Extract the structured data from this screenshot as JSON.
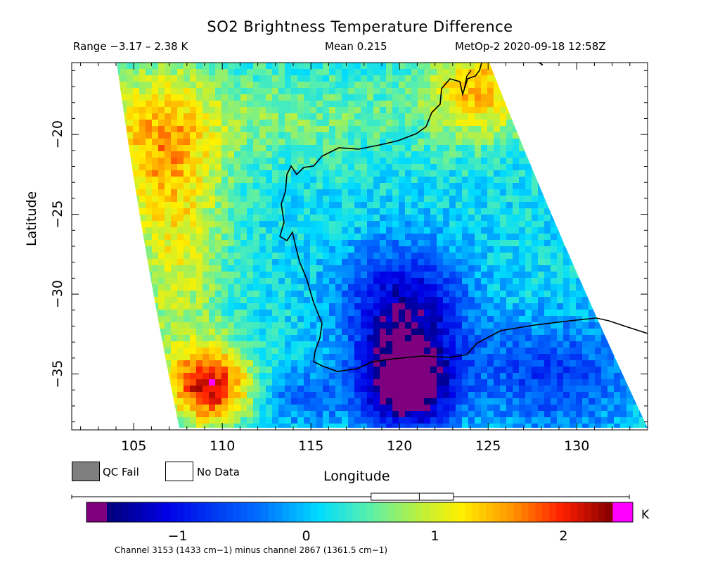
{
  "header": {
    "title": "SO2 Brightness Temperature Difference",
    "range": "Range −3.17 – 2.38 K",
    "mean": "Mean 0.215",
    "satellite_time": "MetOp-2 2020-09-18 12:58Z"
  },
  "axes": {
    "xlabel": "Longitude",
    "ylabel": "Latitude",
    "xticks": [
      "105",
      "110",
      "115",
      "120",
      "125",
      "130"
    ],
    "yticks": [
      "−20",
      "−25",
      "−30",
      "−35"
    ]
  },
  "legend": {
    "qc_fail": "QC Fail",
    "no_data": "No Data",
    "qc_fail_color": "#7f7f7f",
    "no_data_color": "#ffffff"
  },
  "colorbar": {
    "ticks": [
      "−1",
      "0",
      "1",
      "2"
    ],
    "unit": "K",
    "range": [
      -1.55,
      2.38
    ],
    "underflow_color": "#7f007f",
    "overflow_color": "#ff00ff",
    "boxplot": {
      "min": -3.17,
      "q1": -0.19,
      "median": 0.29,
      "q3": 0.63,
      "max": 2.38
    }
  },
  "footnote": "Channel 3153 (1433 cm−1) minus channel 2867 (1361.5 cm−1)",
  "chart_data": {
    "type": "heatmap",
    "title": "SO2 Brightness Temperature Difference",
    "xlabel": "Longitude",
    "ylabel": "Latitude",
    "xlim": [
      101.5,
      134
    ],
    "ylim": [
      -38.5,
      -15.5
    ],
    "units": "K",
    "colorbar_ticks": [
      -1,
      0,
      1,
      2
    ],
    "value_range": [
      -3.17,
      2.38
    ],
    "mean": 0.215,
    "regions": [
      {
        "name": "north-west",
        "value": 1.3
      },
      {
        "name": "north-east",
        "value": 1.4
      },
      {
        "name": "centre-north",
        "value": 0.6
      },
      {
        "name": "centre",
        "value": 0.15
      },
      {
        "name": "south-centre",
        "value": -1.4
      },
      {
        "name": "far-south-centre",
        "value": -2.0
      },
      {
        "name": "south-west",
        "value": 2.1
      },
      {
        "name": "south-east",
        "value": -0.7
      },
      {
        "name": "west-edge",
        "value": 0.9
      }
    ]
  }
}
